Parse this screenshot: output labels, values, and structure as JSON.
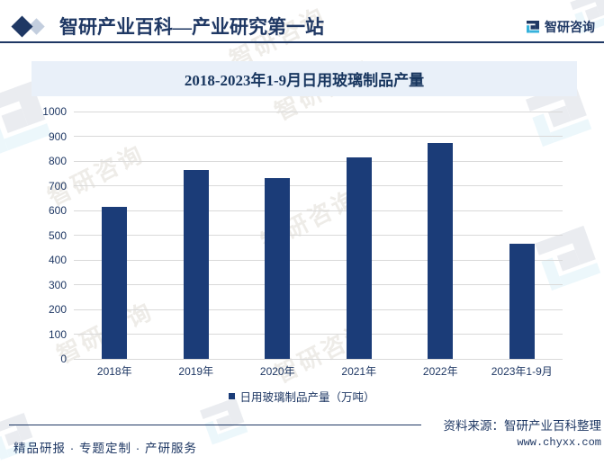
{
  "header": {
    "title": "智研产业百科—产业研究第一站",
    "brand": "智研咨询"
  },
  "chart_data": {
    "type": "bar",
    "title": "2018-2023年1-9月日用玻璃制品产量",
    "categories": [
      "2018年",
      "2019年",
      "2020年",
      "2021年",
      "2022年",
      "2023年1-9月"
    ],
    "values": [
      615,
      762,
      732,
      815,
      873,
      466
    ],
    "xlabel": "",
    "ylabel": "",
    "ylim": [
      0,
      1000
    ],
    "ytick_step": 100,
    "legend": [
      "日用玻璃制品产量（万吨）"
    ],
    "legend_position": "bottom",
    "grid": true,
    "bar_color": "#1B3C78"
  },
  "footer": {
    "services": "精品研报 · 专题定制 · 产研服务",
    "source": "资料来源：智研产业百科整理",
    "website": "www.chyxx.com"
  },
  "watermark": {
    "text": "智研咨询"
  },
  "colors": {
    "navy": "#1F3864",
    "bar": "#1B3C78",
    "title_bg": "#E9F0F9",
    "grid": "#D9D9D9",
    "accent_cyan": "#35B2DC"
  }
}
